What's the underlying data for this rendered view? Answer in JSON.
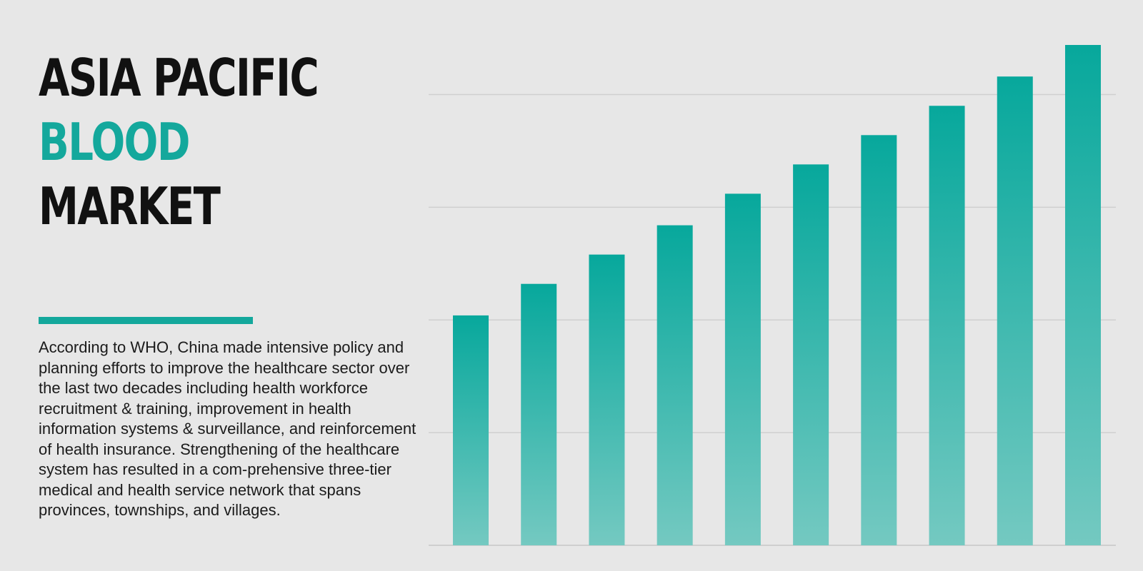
{
  "header": {
    "title_line_1": "ASIA PACIFIC",
    "title_line_2": "BLOOD",
    "title_line_3": "MARKET"
  },
  "description": "According to WHO, China made intensive policy and planning efforts to improve the healthcare sector over the last two decades including health workforce recruitment & training, improvement in health information systems & surveillance, and reinforcement of health insurance. Strengthening of the healthcare system has resulted in a com-prehensive three-tier medical and health service network that spans provinces, townships, and villages.",
  "colors": {
    "background": "#e7e7e7",
    "text": "#111111",
    "accent": "#14a89c",
    "bar_top": "#07a89c",
    "bar_bottom": "#74c9c1",
    "gridline": "#cfcfcf"
  },
  "chart_data": {
    "type": "bar",
    "title": "",
    "xlabel": "",
    "ylabel": "",
    "categories": [
      "",
      "",
      "",
      "",
      "",
      "",
      "",
      "",
      "",
      ""
    ],
    "values": [
      51,
      58,
      64.5,
      71,
      78,
      84.5,
      91,
      97.5,
      104,
      111
    ],
    "ylim": [
      0,
      111
    ],
    "grid": true,
    "gridlines": [
      25,
      50,
      75,
      100
    ],
    "legend": "none"
  }
}
